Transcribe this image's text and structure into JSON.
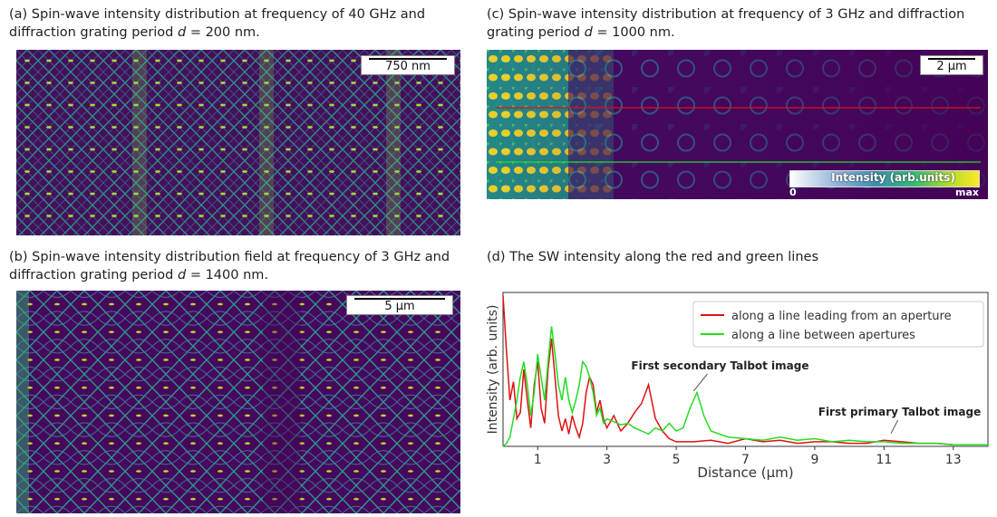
{
  "panels": {
    "a": {
      "caption_pre": "(a) Spin-wave intensity distribution at frequency of 40 GHz and diffraction grating period ",
      "caption_var": "d",
      "caption_post": " = 200 nm.",
      "scale": "750 nm"
    },
    "b": {
      "caption_pre": "(b) Spin-wave intensity distribution field at frequency of 3 GHz and diffraction grating period ",
      "caption_var": "d",
      "caption_post": " = 1400 nm.",
      "scale": "5 µm"
    },
    "c": {
      "caption_pre": "(c) Spin-wave intensity distribution at frequency of 3 GHz and diffraction grating period ",
      "caption_var": "d",
      "caption_post": " = 1000 nm.",
      "scale": "2 µm",
      "colorbar": {
        "title": "Intensity (arb.units)",
        "min": "0",
        "max": "max"
      }
    },
    "d": {
      "caption": "(d) The SW intensity along the red and green lines"
    }
  },
  "colors": {
    "field_dark": "#440154",
    "field_mid": "#21908d",
    "field_bright": "#fde725",
    "red": "#e01010",
    "green": "#22dd22"
  },
  "chart_data": {
    "type": "line",
    "title": "",
    "xlabel": "Distance (μm)",
    "ylabel": "Intensity (arb. units)",
    "xlim": [
      0,
      14
    ],
    "ylim": [
      0,
      1
    ],
    "xticks": [
      1,
      3,
      5,
      7,
      9,
      11,
      13
    ],
    "legend_position": "top-right",
    "series": [
      {
        "name": "along a line leading from an aperture",
        "color": "#e01010",
        "x": [
          0.0,
          0.1,
          0.2,
          0.3,
          0.4,
          0.5,
          0.6,
          0.7,
          0.8,
          0.9,
          1.0,
          1.1,
          1.2,
          1.3,
          1.4,
          1.5,
          1.6,
          1.7,
          1.8,
          1.9,
          2.0,
          2.1,
          2.2,
          2.3,
          2.4,
          2.5,
          2.6,
          2.7,
          2.8,
          2.9,
          3.0,
          3.2,
          3.4,
          3.6,
          3.8,
          4.0,
          4.2,
          4.4,
          4.6,
          4.8,
          5.0,
          5.5,
          6.0,
          6.5,
          7.0,
          7.5,
          8.0,
          8.5,
          9.0,
          9.5,
          10.0,
          10.5,
          11.0,
          11.5,
          12.0,
          12.5,
          13.0,
          13.5,
          14.0
        ],
        "y": [
          0.98,
          0.62,
          0.3,
          0.42,
          0.18,
          0.22,
          0.5,
          0.3,
          0.12,
          0.4,
          0.55,
          0.25,
          0.15,
          0.5,
          0.7,
          0.45,
          0.2,
          0.1,
          0.18,
          0.08,
          0.2,
          0.12,
          0.06,
          0.15,
          0.35,
          0.45,
          0.4,
          0.22,
          0.3,
          0.18,
          0.12,
          0.2,
          0.1,
          0.15,
          0.22,
          0.28,
          0.4,
          0.18,
          0.1,
          0.05,
          0.03,
          0.03,
          0.04,
          0.02,
          0.05,
          0.03,
          0.04,
          0.02,
          0.03,
          0.03,
          0.02,
          0.02,
          0.04,
          0.03,
          0.02,
          0.02,
          0.01,
          0.01,
          0.01
        ]
      },
      {
        "name": "along a line between apertures",
        "color": "#22dd22",
        "x": [
          0.0,
          0.1,
          0.2,
          0.3,
          0.4,
          0.5,
          0.6,
          0.7,
          0.8,
          0.9,
          1.0,
          1.1,
          1.2,
          1.3,
          1.4,
          1.5,
          1.6,
          1.7,
          1.8,
          1.9,
          2.0,
          2.1,
          2.2,
          2.3,
          2.4,
          2.5,
          2.6,
          2.7,
          2.8,
          2.9,
          3.0,
          3.2,
          3.4,
          3.6,
          3.8,
          4.0,
          4.2,
          4.4,
          4.6,
          4.8,
          5.0,
          5.2,
          5.4,
          5.6,
          5.8,
          6.0,
          6.5,
          7.0,
          7.5,
          8.0,
          8.5,
          9.0,
          9.5,
          10.0,
          10.5,
          11.0,
          11.5,
          12.0,
          12.5,
          13.0,
          13.5,
          14.0
        ],
        "y": [
          0.0,
          0.02,
          0.06,
          0.18,
          0.3,
          0.45,
          0.55,
          0.4,
          0.2,
          0.35,
          0.6,
          0.45,
          0.3,
          0.55,
          0.78,
          0.6,
          0.4,
          0.3,
          0.45,
          0.3,
          0.22,
          0.3,
          0.4,
          0.55,
          0.52,
          0.45,
          0.35,
          0.2,
          0.25,
          0.15,
          0.18,
          0.16,
          0.14,
          0.15,
          0.12,
          0.1,
          0.08,
          0.12,
          0.1,
          0.15,
          0.1,
          0.12,
          0.25,
          0.35,
          0.2,
          0.1,
          0.06,
          0.05,
          0.04,
          0.06,
          0.04,
          0.05,
          0.03,
          0.04,
          0.03,
          0.03,
          0.02,
          0.02,
          0.02,
          0.01,
          0.01,
          0.01
        ]
      }
    ],
    "annotations": [
      {
        "text": "First secondary Talbot image",
        "x": 5.5,
        "y": 0.33
      },
      {
        "text": "First primary Talbot image",
        "x": 11.2,
        "y": 0.06
      }
    ]
  }
}
